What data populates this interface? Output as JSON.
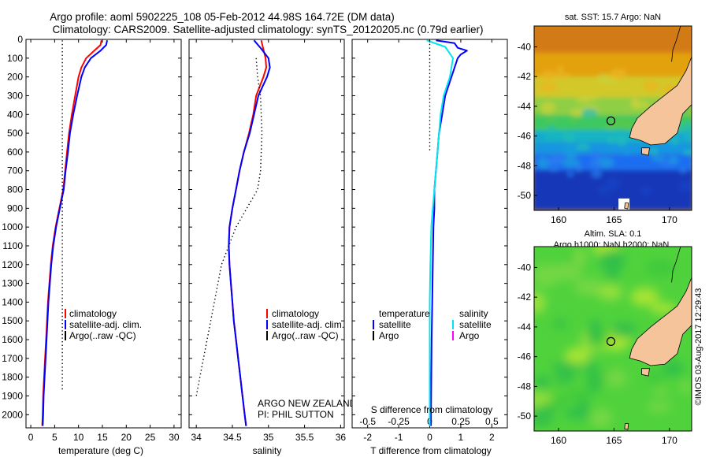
{
  "title": {
    "line1": "Argo profile: aoml 5902225_108 05-Feb-2012 44.98S 164.72E (DM data)",
    "line2": "Climatology: CARS2009. Satellite-adjusted climatology: synTS_20120205.nc (0.79d earlier)"
  },
  "colors": {
    "climatology": "#ff0000",
    "satellite": "#0000ff",
    "argo": "#000000",
    "salinity_satellite": "#00e6ee",
    "salinity_argo": "#ff00ff",
    "land": "#f5c49a"
  },
  "chart_data": [
    {
      "type": "line",
      "name": "temperature-panel",
      "xlabel": "temperature (deg C)",
      "xlim": [
        -1,
        31.5
      ],
      "xticks": [
        0,
        5,
        10,
        15,
        20,
        25,
        30
      ],
      "ylim": [
        2070,
        0
      ],
      "yticks": [
        0,
        100,
        200,
        300,
        400,
        500,
        600,
        700,
        800,
        900,
        1000,
        1100,
        1200,
        1300,
        1400,
        1500,
        1600,
        1700,
        1800,
        1900,
        2000
      ],
      "legend": [
        "climatology",
        "satellite-adj. clim.",
        "Argo(..raw -QC)"
      ],
      "series": [
        {
          "name": "climatology",
          "color": "#ff0000",
          "points": [
            [
              14.8,
              5
            ],
            [
              14.6,
              30
            ],
            [
              13.3,
              60
            ],
            [
              11.6,
              100
            ],
            [
              10.6,
              150
            ],
            [
              10.0,
              200
            ],
            [
              9.3,
              300
            ],
            [
              8.6,
              400
            ],
            [
              8.0,
              500
            ],
            [
              7.6,
              600
            ],
            [
              7.2,
              700
            ],
            [
              6.8,
              800
            ],
            [
              6.0,
              900
            ],
            [
              5.2,
              1000
            ],
            [
              4.6,
              1100
            ],
            [
              4.2,
              1200
            ],
            [
              3.9,
              1300
            ],
            [
              3.6,
              1400
            ],
            [
              3.4,
              1500
            ],
            [
              3.2,
              1600
            ],
            [
              3.0,
              1700
            ],
            [
              2.8,
              1800
            ],
            [
              2.6,
              1900
            ],
            [
              2.5,
              2000
            ],
            [
              2.4,
              2060
            ]
          ]
        },
        {
          "name": "satellite-adj. clim.",
          "color": "#0000ff",
          "points": [
            [
              16.0,
              5
            ],
            [
              15.8,
              30
            ],
            [
              14.6,
              60
            ],
            [
              12.6,
              100
            ],
            [
              11.3,
              150
            ],
            [
              10.6,
              200
            ],
            [
              9.7,
              300
            ],
            [
              8.9,
              400
            ],
            [
              8.2,
              500
            ],
            [
              7.8,
              600
            ],
            [
              7.3,
              700
            ],
            [
              6.9,
              800
            ],
            [
              6.1,
              900
            ],
            [
              5.3,
              1000
            ],
            [
              4.7,
              1100
            ],
            [
              4.3,
              1200
            ],
            [
              4.0,
              1300
            ],
            [
              3.7,
              1400
            ],
            [
              3.5,
              1500
            ],
            [
              3.3,
              1600
            ],
            [
              3.1,
              1700
            ],
            [
              2.9,
              1800
            ],
            [
              2.7,
              1900
            ],
            [
              2.6,
              2000
            ],
            [
              2.5,
              2060
            ]
          ]
        },
        {
          "name": "Argo(..raw -QC)",
          "color": "#000000",
          "dotted": true,
          "points": [
            [
              6.6,
              5
            ],
            [
              6.6,
              1870
            ]
          ]
        }
      ]
    },
    {
      "type": "line",
      "name": "salinity-panel",
      "xlabel": "salinity",
      "xlim": [
        33.9,
        36.05
      ],
      "xticks": [
        34,
        34.5,
        35,
        35.5,
        36
      ],
      "ylim": [
        2070,
        0
      ],
      "legend": [
        "climatology",
        "satellite-adj. clim.",
        "Argo(..raw -QC)"
      ],
      "annotation": [
        "ARGO NEW ZEALAND",
        "PI: PHIL SUTTON"
      ],
      "series": [
        {
          "name": "climatology",
          "color": "#ff0000",
          "points": [
            [
              34.9,
              5
            ],
            [
              34.96,
              100
            ],
            [
              34.97,
              150
            ],
            [
              34.93,
              200
            ],
            [
              34.83,
              300
            ],
            [
              34.79,
              400
            ],
            [
              34.73,
              500
            ],
            [
              34.66,
              600
            ],
            [
              34.6,
              700
            ],
            [
              34.55,
              800
            ],
            [
              34.5,
              900
            ],
            [
              34.46,
              1000
            ],
            [
              34.45,
              1100
            ],
            [
              34.46,
              1200
            ],
            [
              34.48,
              1300
            ],
            [
              34.5,
              1400
            ],
            [
              34.52,
              1500
            ],
            [
              34.55,
              1600
            ],
            [
              34.58,
              1700
            ],
            [
              34.61,
              1800
            ],
            [
              34.64,
              1900
            ],
            [
              34.67,
              2000
            ],
            [
              34.69,
              2060
            ]
          ]
        },
        {
          "name": "satellite-adj. clim.",
          "color": "#0000ff",
          "points": [
            [
              34.8,
              5
            ],
            [
              34.9,
              50
            ],
            [
              35.0,
              100
            ],
            [
              35.02,
              150
            ],
            [
              34.98,
              200
            ],
            [
              34.86,
              300
            ],
            [
              34.8,
              400
            ],
            [
              34.74,
              500
            ],
            [
              34.66,
              600
            ],
            [
              34.6,
              700
            ],
            [
              34.55,
              800
            ],
            [
              34.5,
              900
            ],
            [
              34.46,
              1000
            ],
            [
              34.45,
              1100
            ],
            [
              34.46,
              1200
            ],
            [
              34.48,
              1300
            ],
            [
              34.5,
              1400
            ],
            [
              34.52,
              1500
            ],
            [
              34.55,
              1600
            ],
            [
              34.58,
              1700
            ],
            [
              34.61,
              1800
            ],
            [
              34.64,
              1900
            ],
            [
              34.67,
              2000
            ],
            [
              34.69,
              2060
            ]
          ]
        },
        {
          "name": "Argo(..raw -QC)",
          "color": "#000000",
          "dotted": true,
          "points": [
            [
              34.83,
              100
            ],
            [
              34.85,
              200
            ],
            [
              34.89,
              300
            ],
            [
              34.9,
              400
            ],
            [
              34.91,
              500
            ],
            [
              34.9,
              600
            ],
            [
              34.89,
              700
            ],
            [
              34.85,
              800
            ],
            [
              34.7,
              900
            ],
            [
              34.55,
              1000
            ],
            [
              34.45,
              1100
            ],
            [
              34.35,
              1200
            ],
            [
              34.25,
              1400
            ],
            [
              34.15,
              1600
            ],
            [
              34.05,
              1800
            ],
            [
              34.0,
              1900
            ]
          ]
        }
      ]
    },
    {
      "type": "line",
      "name": "difference-panel",
      "xlabel": "T difference from climatology",
      "xlabel_top": "S difference from climatology",
      "xlim": [
        -2.5,
        2.5
      ],
      "xticks": [
        -2,
        -1,
        0,
        1,
        2
      ],
      "xticks_s": [
        -0.5,
        -0.25,
        0,
        0.25,
        0.5
      ],
      "ylim": [
        2070,
        0
      ],
      "legend": {
        "temperature_heading": "temperature",
        "salinity_heading": "salinity",
        "satellite": "satellite",
        "argo": "Argo"
      },
      "series": [
        {
          "name": "temperature satellite",
          "color": "#0000ff",
          "points": [
            [
              0.2,
              5
            ],
            [
              0.8,
              20
            ],
            [
              0.9,
              45
            ],
            [
              1.2,
              60
            ],
            [
              1.0,
              80
            ],
            [
              0.9,
              100
            ],
            [
              0.7,
              200
            ],
            [
              0.5,
              300
            ],
            [
              0.4,
              400
            ],
            [
              0.3,
              500
            ],
            [
              0.25,
              600
            ],
            [
              0.2,
              700
            ],
            [
              0.15,
              800
            ],
            [
              0.15,
              900
            ],
            [
              0.12,
              1000
            ],
            [
              0.1,
              1200
            ],
            [
              0.08,
              1400
            ],
            [
              0.06,
              1600
            ],
            [
              0.05,
              1800
            ],
            [
              0.04,
              2000
            ],
            [
              0.04,
              2060
            ]
          ]
        },
        {
          "name": "salinity satellite",
          "color": "#00e6ee",
          "points": [
            [
              -0.1,
              5
            ],
            [
              0.5,
              40
            ],
            [
              0.75,
              100
            ],
            [
              0.65,
              200
            ],
            [
              0.45,
              300
            ],
            [
              0.35,
              400
            ],
            [
              0.3,
              500
            ],
            [
              0.25,
              600
            ],
            [
              0.2,
              700
            ],
            [
              0.15,
              800
            ],
            [
              0.1,
              900
            ],
            [
              0.05,
              1000
            ],
            [
              0.02,
              1200
            ],
            [
              0.0,
              1400
            ],
            [
              0.0,
              1600
            ],
            [
              0.0,
              1800
            ],
            [
              0.0,
              2000
            ],
            [
              0.0,
              2060
            ]
          ]
        },
        {
          "name": "zero reference",
          "color": "#000000",
          "dotted": true,
          "points": [
            [
              0,
              5
            ],
            [
              0,
              600
            ]
          ]
        }
      ]
    },
    {
      "type": "heatmap",
      "name": "sst-map",
      "title": "sat. SST: 15.7  Argo: NaN",
      "xticks": [
        160,
        165,
        170
      ],
      "yticks": [
        -40,
        -42,
        -44,
        -46,
        -48,
        -50
      ],
      "xlim": [
        157.8,
        172
      ],
      "ylim": [
        -51,
        -38.6
      ],
      "argo_position": [
        164.72,
        -44.98
      ]
    },
    {
      "type": "heatmap",
      "name": "sla-map",
      "title": "Altim. SLA: 0.1",
      "subtitle": "Argo h1000: NaN  h2000: NaN",
      "xticks": [
        160,
        165,
        170
      ],
      "yticks": [
        -40,
        -42,
        -44,
        -46,
        -48,
        -50
      ],
      "xlim": [
        157.8,
        172
      ],
      "ylim": [
        -51,
        -38.6
      ],
      "argo_position": [
        164.72,
        -44.98
      ]
    }
  ],
  "watermark": "©IMOS 03-Aug-2017 12:29:43"
}
